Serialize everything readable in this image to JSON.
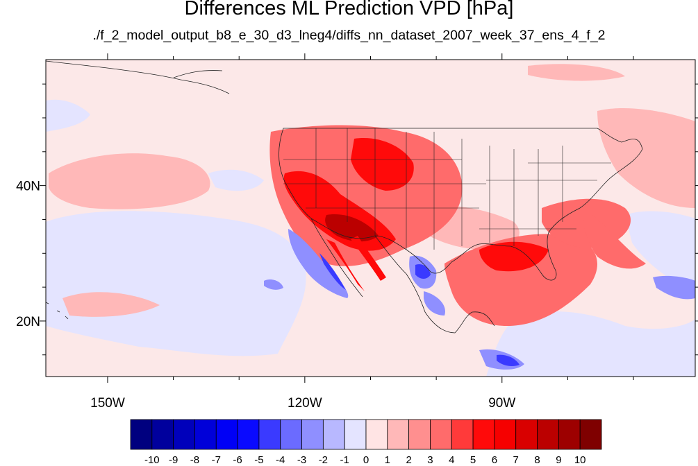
{
  "title": "Differences ML Prediction VPD [hPa]",
  "subtitle": "./f_2_model_output_b8_e_30_d3_lneg4/diffs_nn_dataset_2007_week_37_ens_4_f_2",
  "axes": {
    "lon_ticks": [
      {
        "label": "150W",
        "lon": -150
      },
      {
        "label": "120W",
        "lon": -120
      },
      {
        "label": "90W",
        "lon": -90
      }
    ],
    "lat_ticks": [
      {
        "label": "40N",
        "lat": 40
      },
      {
        "label": "20N",
        "lat": 20
      }
    ],
    "lon_range": [
      -159.4,
      -60.6
    ],
    "lat_range": [
      11.8,
      58.6
    ]
  },
  "colorbar": {
    "levels": [
      "-10",
      "-9",
      "-8",
      "-7",
      "-6",
      "-5",
      "-4",
      "-3",
      "-2",
      "-1",
      "0",
      "1",
      "2",
      "3",
      "4",
      "5",
      "6",
      "7",
      "8",
      "9",
      "10"
    ],
    "colors": [
      "#00007f",
      "#00009d",
      "#0000bb",
      "#0000d9",
      "#0000f6",
      "#0a0aff",
      "#3a3aff",
      "#6b6bff",
      "#8f8fff",
      "#b8b8ff",
      "#e4e4ff",
      "#ffe4e4",
      "#ffb8b8",
      "#ff8f8f",
      "#ff6b6b",
      "#ff3a3a",
      "#ff0a0a",
      "#f60000",
      "#d90000",
      "#bb0000",
      "#9d0000",
      "#7f0000"
    ]
  },
  "palette": {
    "background": "#fce8e8",
    "light_blue": "#e4e4ff",
    "blue": "#8f8fff",
    "dark_blue": "#3a3aff",
    "light_red": "#ffb8b8",
    "red": "#ff6b6b",
    "dark_red": "#ff0a0a",
    "darkest_red": "#bb0000"
  }
}
